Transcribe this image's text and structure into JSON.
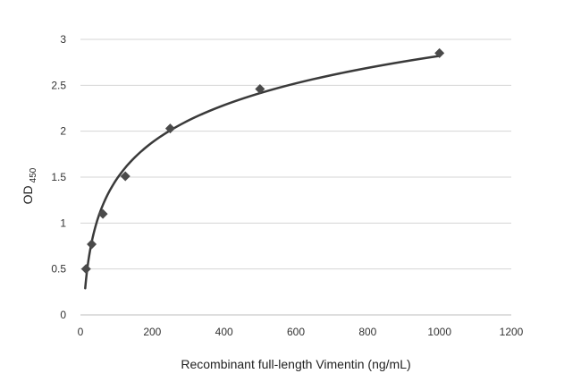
{
  "chart_data": {
    "type": "scatter",
    "xlabel": "Recombinant full-length Vimentin (ng/mL)",
    "ylabel": "OD",
    "ylabel_sub": "450",
    "xlim": [
      0,
      1200
    ],
    "ylim": [
      0,
      3
    ],
    "x_ticks": [
      "0",
      "200",
      "400",
      "600",
      "800",
      "1000",
      "1200"
    ],
    "y_ticks": [
      "0",
      "0.5",
      "1",
      "1.5",
      "2",
      "2.5",
      "3"
    ],
    "grid": "horizontal",
    "legend": "none",
    "trendline": "logarithmic",
    "x": [
      15.6,
      31.25,
      62.5,
      125,
      250,
      500,
      1000
    ],
    "y": [
      0.5,
      0.77,
      1.1,
      1.51,
      2.03,
      2.46,
      2.85
    ],
    "colors": {
      "marker": "#4a4a4a",
      "line": "#3a3a3a",
      "grid": "#d4d4d4"
    }
  }
}
